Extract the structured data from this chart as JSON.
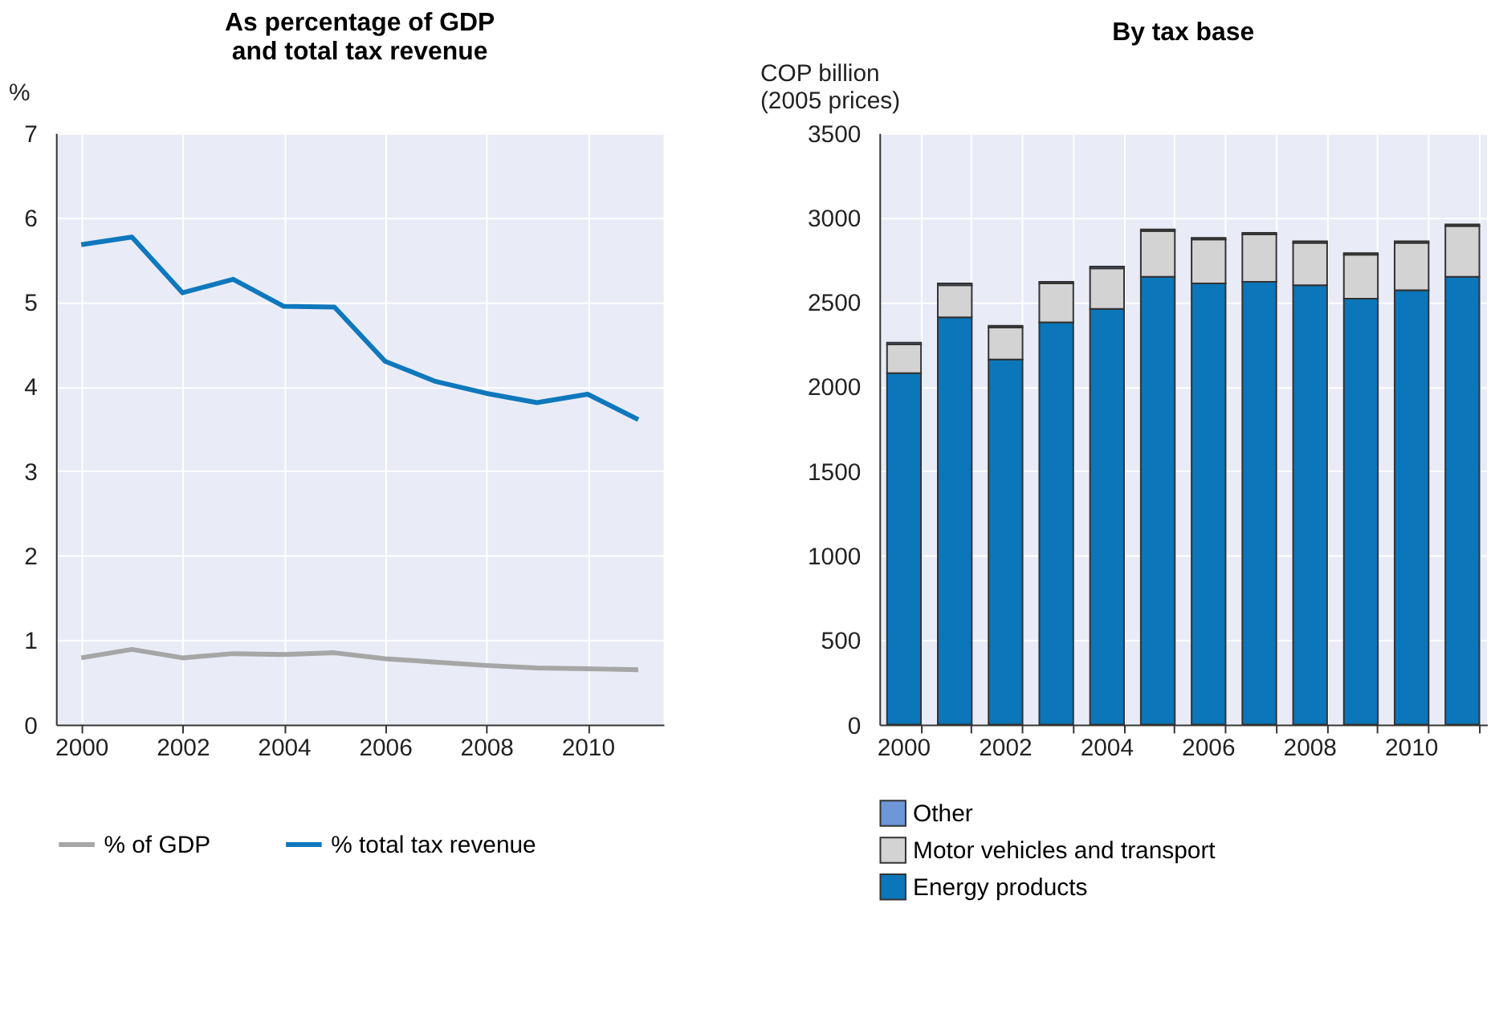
{
  "chart_data": [
    {
      "type": "line",
      "title": "As percentage of GDP and total tax revenue",
      "ylabel": "%",
      "x": [
        2000,
        2001,
        2002,
        2003,
        2004,
        2005,
        2006,
        2007,
        2008,
        2009,
        2010,
        2011
      ],
      "series": [
        {
          "name": "% of GDP",
          "color": "#a6a6a6",
          "values": [
            0.79,
            0.89,
            0.79,
            0.84,
            0.83,
            0.85,
            0.78,
            0.74,
            0.7,
            0.67,
            0.66,
            0.65
          ]
        },
        {
          "name": "% total tax revenue",
          "color": "#0f78bd",
          "values": [
            5.68,
            5.77,
            5.11,
            5.27,
            4.95,
            4.94,
            4.3,
            4.06,
            3.92,
            3.81,
            3.91,
            3.61
          ]
        }
      ],
      "xlim": [
        1999.5,
        2011.5
      ],
      "xticks": [
        2000,
        2002,
        2004,
        2006,
        2008,
        2010
      ],
      "ylim": [
        0,
        7
      ],
      "yticks": [
        0,
        1,
        2,
        3,
        4,
        5,
        6,
        7
      ],
      "grid": true,
      "legend": "bottom",
      "line_style": "solid",
      "marker": "none"
    },
    {
      "type": "bar",
      "stacked": true,
      "title": "By tax base",
      "ylabel": "COP billion\n(2005 prices)",
      "categories": [
        "2000",
        null,
        "2002",
        null,
        "2004",
        null,
        "2006",
        null,
        "2008",
        null,
        "2010",
        null
      ],
      "series": [
        {
          "name": "Energy products",
          "color": "#0b76b9",
          "values": [
            2080,
            2410,
            2160,
            2380,
            2460,
            2650,
            2610,
            2620,
            2600,
            2520,
            2570,
            2650
          ]
        },
        {
          "name": "Motor vehicles and transport",
          "color": "#d3d3d3",
          "values": [
            170,
            190,
            190,
            230,
            240,
            270,
            260,
            280,
            250,
            260,
            280,
            300
          ]
        },
        {
          "name": "Other",
          "color": "#6d97d6",
          "values": [
            10,
            10,
            10,
            10,
            10,
            10,
            10,
            10,
            10,
            10,
            10,
            10
          ]
        }
      ],
      "ylim": [
        0,
        3500
      ],
      "yticks": [
        0,
        500,
        1000,
        1500,
        2000,
        2500,
        3000,
        3500
      ],
      "grid": true,
      "legend": "bottom"
    }
  ]
}
